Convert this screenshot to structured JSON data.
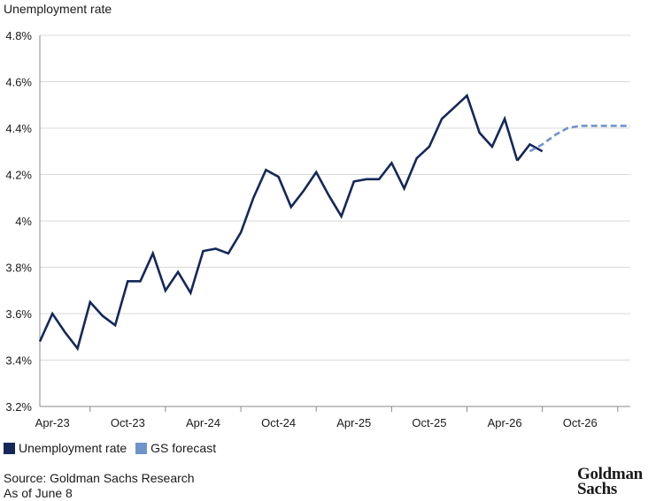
{
  "chart_data": {
    "type": "line",
    "title": "Unemployment rate",
    "ylim": [
      3.2,
      4.8
    ],
    "y_ticks": [
      {
        "value": 3.2,
        "label": "3.2%"
      },
      {
        "value": 3.4,
        "label": "3.4%"
      },
      {
        "value": 3.6,
        "label": "3.6%"
      },
      {
        "value": 3.8,
        "label": "3.8%"
      },
      {
        "value": 4.0,
        "label": "4%"
      },
      {
        "value": 4.2,
        "label": "4.2%"
      },
      {
        "value": 4.4,
        "label": "4.4%"
      },
      {
        "value": 4.6,
        "label": "4.6%"
      },
      {
        "value": 4.8,
        "label": "4.8%"
      }
    ],
    "x_ticks": [
      "Apr-23",
      "Oct-23",
      "Apr-24",
      "Oct-24",
      "Apr-25",
      "Oct-25",
      "Apr-26",
      "Oct-26"
    ],
    "grid": true,
    "legend_position": "bottom-left",
    "series": [
      {
        "name": "Unemployment rate",
        "color": "#14285a",
        "style": "solid",
        "x": [
          "Mar-23",
          "Apr-23",
          "May-23",
          "Jun-23",
          "Jul-23",
          "Aug-23",
          "Sep-23",
          "Oct-23",
          "Nov-23",
          "Dec-23",
          "Jan-24",
          "Feb-24",
          "Mar-24",
          "Apr-24",
          "May-24",
          "Jun-24",
          "Jul-24",
          "Aug-24",
          "Sep-24",
          "Oct-24",
          "Nov-24",
          "Dec-24",
          "Jan-25",
          "Feb-25",
          "Mar-25",
          "Apr-25",
          "May-25",
          "Jun-25",
          "Jul-25",
          "Aug-25",
          "Sep-25",
          "Oct-25",
          "Nov-25",
          "Dec-25",
          "Jan-26",
          "Feb-26",
          "Mar-26",
          "Apr-26",
          "May-26"
        ],
        "values": [
          3.48,
          3.6,
          3.52,
          3.45,
          3.65,
          3.59,
          3.55,
          3.74,
          3.74,
          3.86,
          3.7,
          3.78,
          3.69,
          3.87,
          3.88,
          3.86,
          3.95,
          4.1,
          4.22,
          4.19,
          4.06,
          4.13,
          4.21,
          4.11,
          4.02,
          4.17,
          4.18,
          4.18,
          4.25,
          4.14,
          4.27,
          4.32,
          4.44,
          4.49,
          4.54,
          4.38,
          4.32,
          4.44,
          4.26
        ]
      },
      {
        "name": "GS forecast",
        "color": "#6f94cb",
        "style": "dashed",
        "x": [
          "Jun-26",
          "Jul-26",
          "Aug-26",
          "Sep-26",
          "Oct-26",
          "Nov-26",
          "Dec-26",
          "Jan-27",
          "Feb-27"
        ],
        "values": [
          4.3,
          4.33,
          4.37,
          4.4,
          4.41,
          4.41,
          4.41,
          4.41,
          4.41
        ]
      }
    ],
    "pre_forecast": {
      "x": [
        "May-26",
        "Jun-26",
        "Jul-26"
      ],
      "values": [
        4.26,
        4.33,
        4.3
      ]
    }
  },
  "legend": {
    "items": [
      {
        "label": "Unemployment rate",
        "color": "#14285a"
      },
      {
        "label": "GS forecast",
        "color": "#6f94cb"
      }
    ]
  },
  "footer": {
    "source": "Source: Goldman Sachs Research",
    "as_of": "As of June 8",
    "logo_line1": "Goldman",
    "logo_line2": "Sachs"
  }
}
